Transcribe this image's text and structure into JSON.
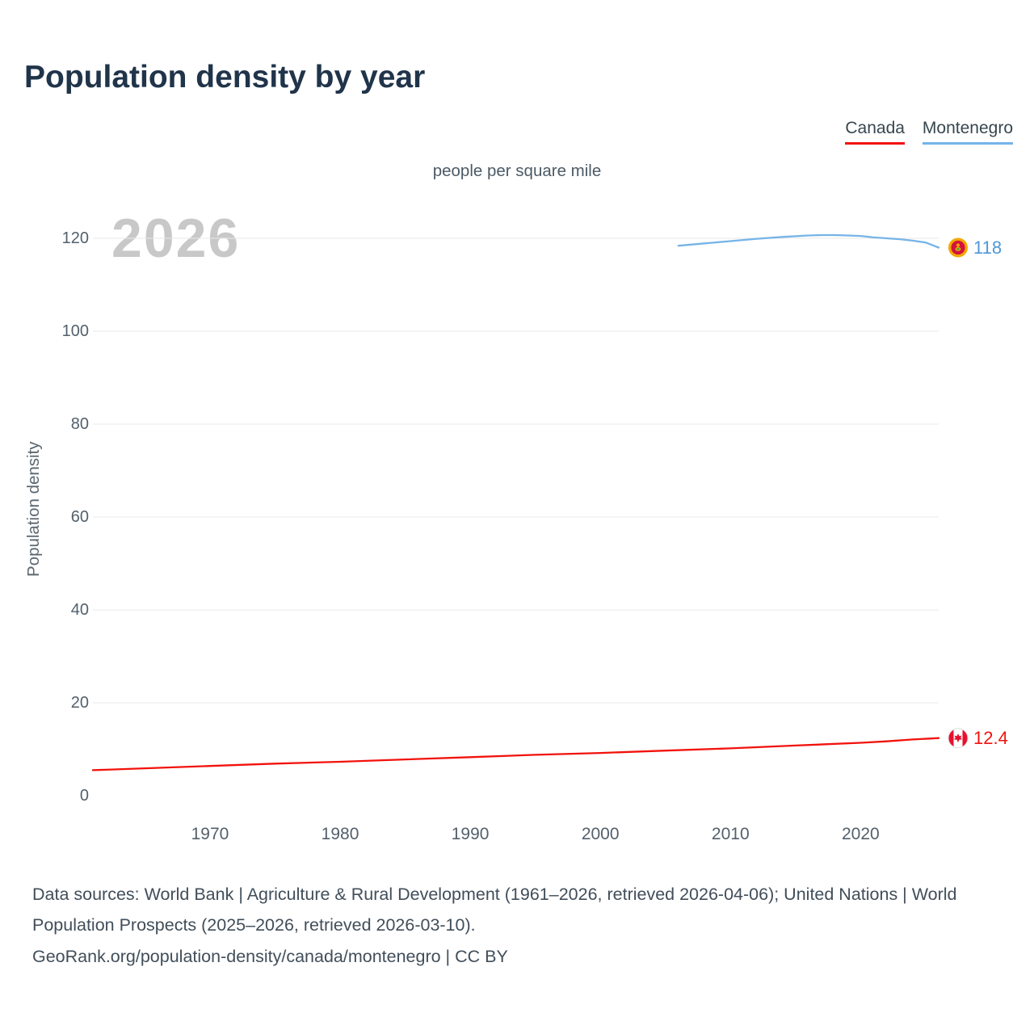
{
  "page": {
    "title": "Population density by year",
    "legend": [
      {
        "label": "Canada",
        "color": "#f2120c"
      },
      {
        "label": "Montenegro",
        "color": "#76b4e8"
      }
    ],
    "footer": {
      "sources": "Data sources: World Bank | Agriculture & Rural Development (1961–2026, retrieved 2026-04-06); United Nations | World Population Prospects (2025–2026, retrieved 2026-03-10).",
      "attribution": "GeoRank.org/population-density/canada/montenegro | CC BY"
    }
  },
  "chart_data": {
    "type": "line",
    "title": "Population density by year",
    "subtitle": "people per square mile",
    "xlabel": "",
    "ylabel": "Population density",
    "watermark": "2026",
    "x_range": [
      1961,
      2026
    ],
    "ylim": [
      0,
      120
    ],
    "y_ticks": [
      0,
      20,
      40,
      60,
      80,
      100,
      120
    ],
    "x_ticks": [
      1970,
      1980,
      1990,
      2000,
      2010,
      2020
    ],
    "grid": "horizontal",
    "legend_position": "top-right",
    "series": [
      {
        "name": "Canada",
        "color": "#f2120c",
        "label_color": "#f2120c",
        "end_label": "12.4",
        "flag": "canada",
        "x": [
          1961,
          1965,
          1970,
          1975,
          1980,
          1985,
          1990,
          1995,
          2000,
          2005,
          2010,
          2015,
          2020,
          2022,
          2024,
          2026
        ],
        "values": [
          5.5,
          5.9,
          6.4,
          6.9,
          7.3,
          7.8,
          8.3,
          8.8,
          9.2,
          9.7,
          10.2,
          10.8,
          11.4,
          11.7,
          12.1,
          12.4
        ]
      },
      {
        "name": "Montenegro",
        "color": "#76b4e8",
        "label_color": "#4f97d7",
        "end_label": "118",
        "flag": "montenegro",
        "x": [
          2006,
          2008,
          2010,
          2012,
          2014,
          2016,
          2017,
          2018,
          2019,
          2020,
          2021,
          2022,
          2023,
          2024,
          2025,
          2026
        ],
        "values": [
          118.4,
          118.9,
          119.4,
          119.9,
          120.3,
          120.6,
          120.7,
          120.7,
          120.6,
          120.5,
          120.2,
          120.0,
          119.8,
          119.5,
          119.1,
          118.0
        ]
      }
    ]
  }
}
